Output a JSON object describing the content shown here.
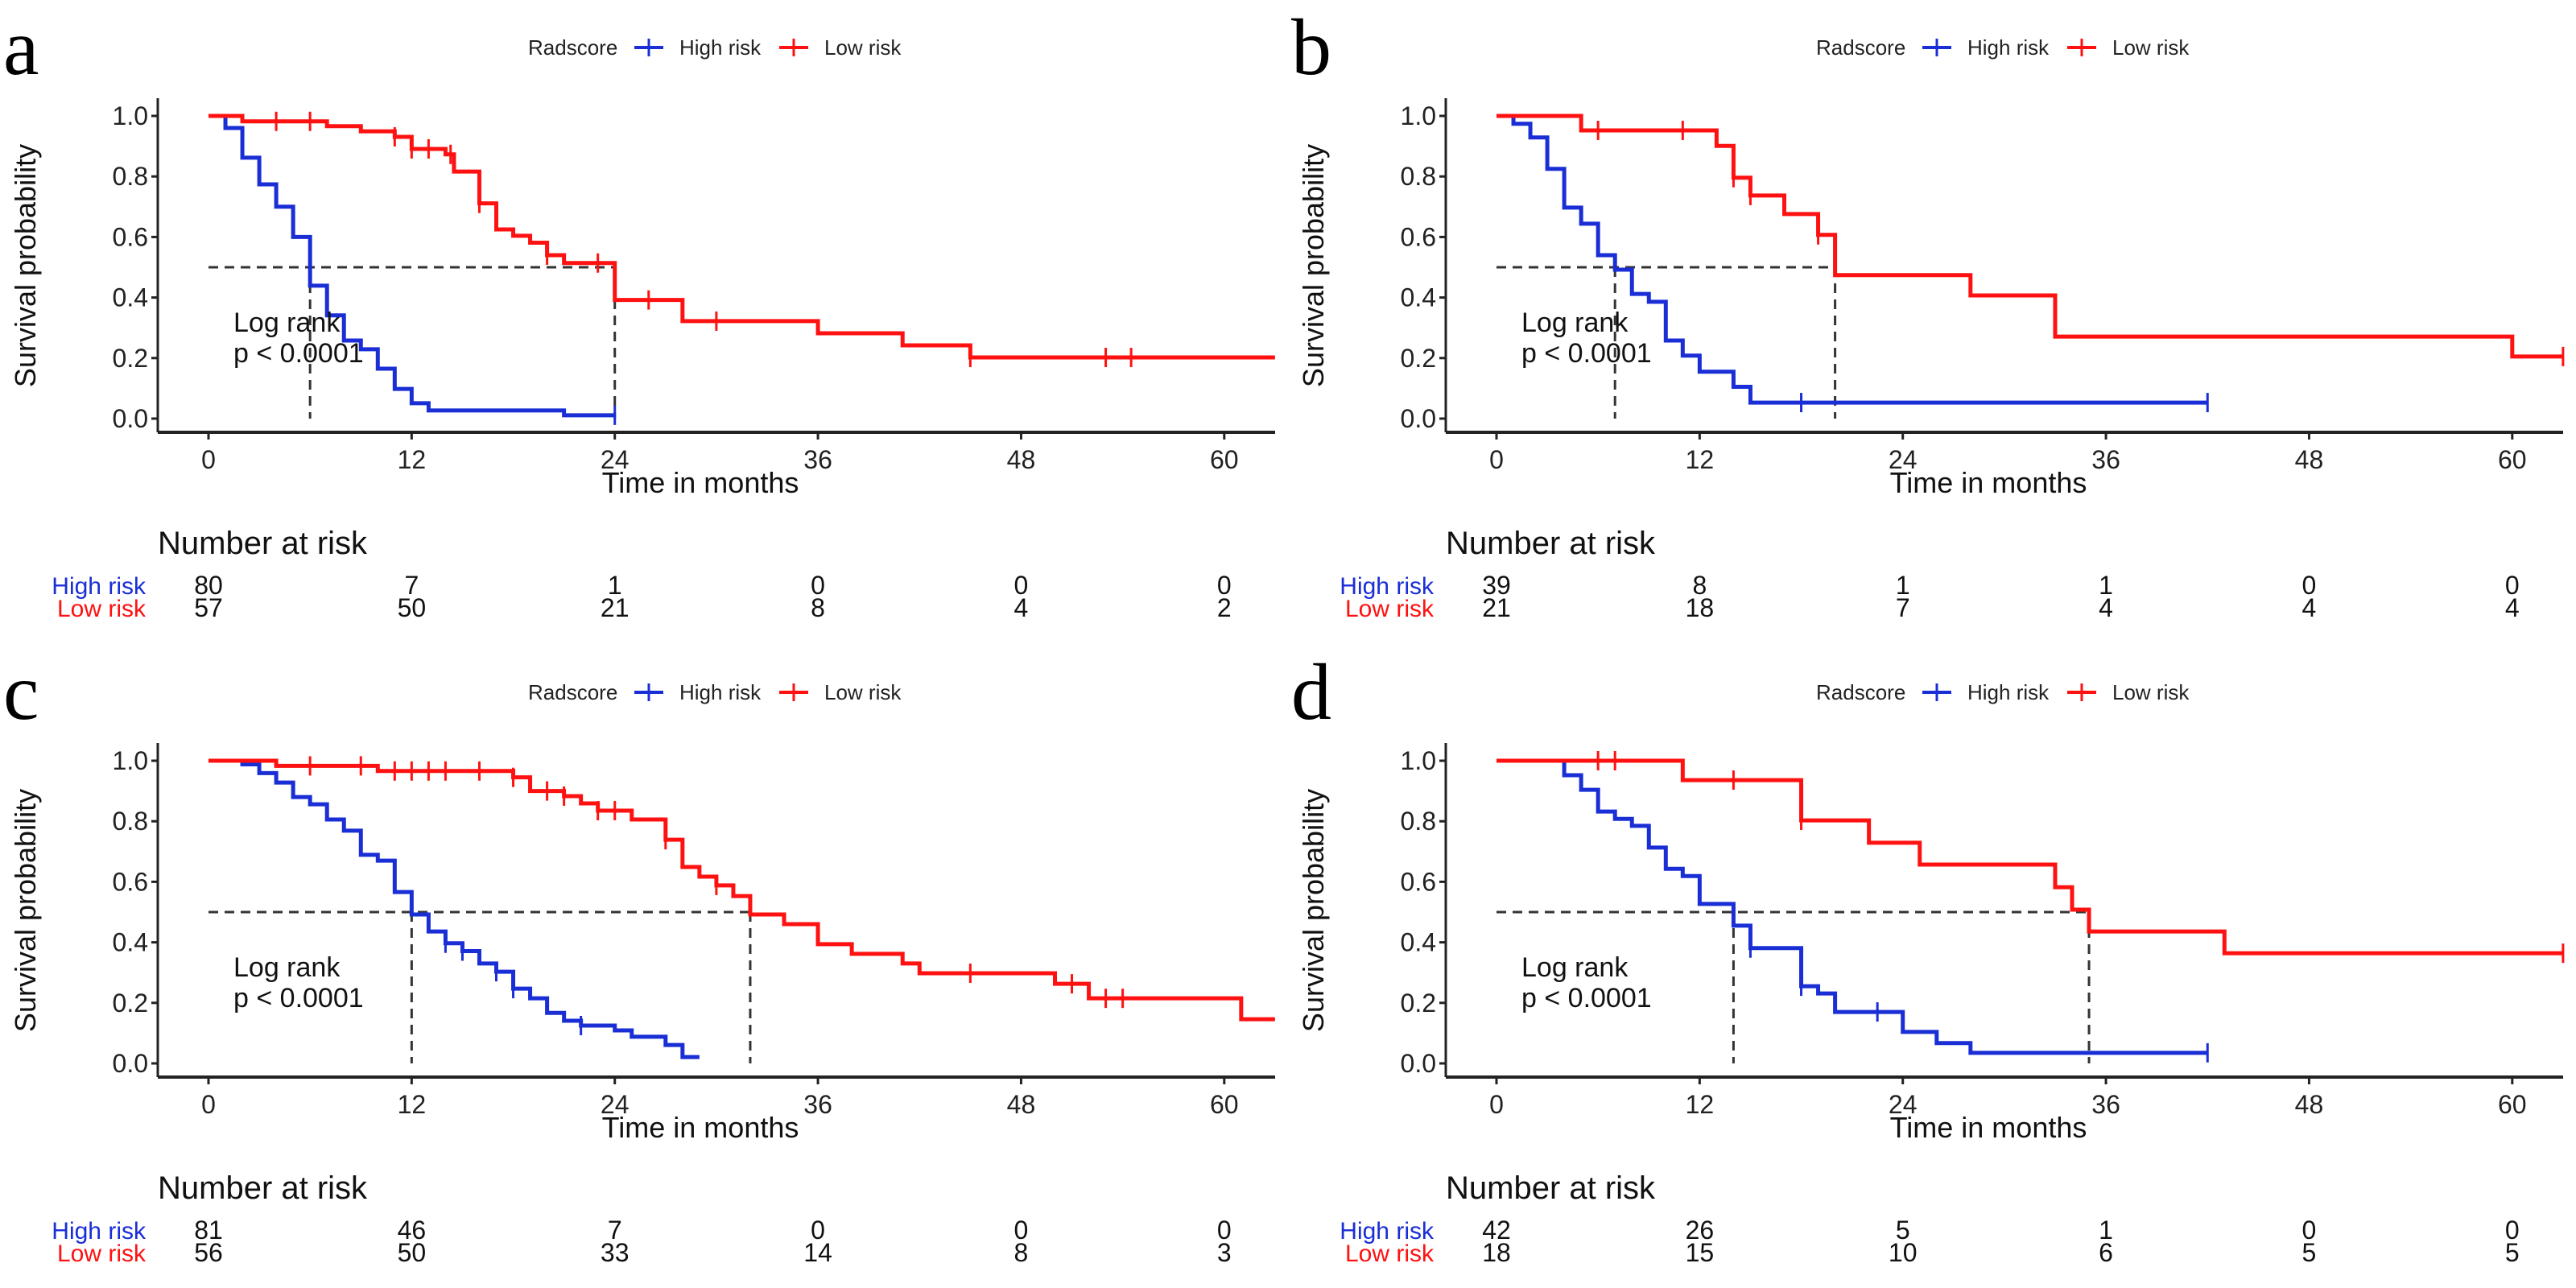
{
  "figure": {
    "legend_title": "Radscore",
    "colors": {
      "High risk": "#1a2ed6",
      "Low risk": "#ff1111",
      "axis": "#222222",
      "median_line": "#333333"
    }
  },
  "chart_data": [
    {
      "panel": "a",
      "type": "line",
      "subtype": "kaplan-meier",
      "title": "",
      "xlabel": "Time in months",
      "ylabel": "Survival probability",
      "xlim": [
        0,
        63
      ],
      "ylim": [
        0,
        1
      ],
      "xticks": [
        0,
        12,
        24,
        36,
        48,
        60
      ],
      "yticks": [
        "0.0",
        "0.2",
        "0.4",
        "0.6",
        "0.8",
        "1.0"
      ],
      "legend": {
        "title": "Radscore",
        "entries": [
          "High risk",
          "Low risk"
        ],
        "position": "top"
      },
      "annotation": [
        "Log rank",
        "p < 0.0001"
      ],
      "medians": {
        "High risk": 6,
        "Low risk": 24
      },
      "series": [
        {
          "name": "High risk",
          "steps": [
            [
              0,
              1.0
            ],
            [
              1,
              0.96
            ],
            [
              2,
              0.862
            ],
            [
              3,
              0.774
            ],
            [
              4,
              0.7
            ],
            [
              5,
              0.6
            ],
            [
              6,
              0.439
            ],
            [
              7,
              0.341
            ],
            [
              8,
              0.258
            ],
            [
              9,
              0.229
            ],
            [
              10,
              0.165
            ],
            [
              11,
              0.098
            ],
            [
              12,
              0.051
            ],
            [
              13,
              0.027
            ],
            [
              21,
              0.011
            ]
          ],
          "end": 24,
          "censors": [
            24
          ]
        },
        {
          "name": "Low risk",
          "steps": [
            [
              0,
              1.0
            ],
            [
              2,
              0.982
            ],
            [
              7,
              0.966
            ],
            [
              9,
              0.949
            ],
            [
              11,
              0.931
            ],
            [
              12,
              0.891
            ],
            [
              14,
              0.873
            ],
            [
              14.5,
              0.816
            ],
            [
              16,
              0.711
            ],
            [
              17,
              0.625
            ],
            [
              18,
              0.604
            ],
            [
              19,
              0.581
            ],
            [
              20,
              0.54
            ],
            [
              21,
              0.514
            ],
            [
              24,
              0.392
            ],
            [
              28,
              0.322
            ],
            [
              36,
              0.282
            ],
            [
              41,
              0.242
            ],
            [
              45,
              0.202
            ]
          ],
          "end": 63,
          "censors": [
            4,
            6,
            11,
            12,
            13,
            14.3,
            16,
            20,
            23,
            26,
            30,
            45,
            53,
            54.5
          ]
        }
      ],
      "risk_table": {
        "title": "Number at risk",
        "times": [
          0,
          12,
          24,
          36,
          48,
          60
        ],
        "rows": [
          {
            "label": "High risk",
            "values": [
              80,
              7,
              1,
              0,
              0,
              0
            ]
          },
          {
            "label": "Low risk",
            "values": [
              57,
              50,
              21,
              8,
              4,
              2
            ]
          }
        ]
      }
    },
    {
      "panel": "b",
      "type": "line",
      "subtype": "kaplan-meier",
      "title": "",
      "xlabel": "Time in months",
      "ylabel": "Survival probability",
      "xlim": [
        0,
        63
      ],
      "ylim": [
        0,
        1
      ],
      "xticks": [
        0,
        12,
        24,
        36,
        48,
        60
      ],
      "yticks": [
        "0.0",
        "0.2",
        "0.4",
        "0.6",
        "0.8",
        "1.0"
      ],
      "legend": {
        "title": "Radscore",
        "entries": [
          "High risk",
          "Low risk"
        ],
        "position": "top"
      },
      "annotation": [
        "Log rank",
        "p < 0.0001"
      ],
      "medians": {
        "High risk": 7,
        "Low risk": 20
      },
      "series": [
        {
          "name": "High risk",
          "steps": [
            [
              0,
              1.0
            ],
            [
              1,
              0.974
            ],
            [
              2,
              0.929
            ],
            [
              3,
              0.825
            ],
            [
              4,
              0.697
            ],
            [
              5,
              0.644
            ],
            [
              6,
              0.54
            ],
            [
              7,
              0.492
            ],
            [
              8,
              0.412
            ],
            [
              9,
              0.386
            ],
            [
              10,
              0.258
            ],
            [
              11,
              0.208
            ],
            [
              12,
              0.155
            ],
            [
              14,
              0.105
            ],
            [
              15,
              0.053
            ]
          ],
          "end": 42,
          "censors": [
            18,
            42
          ]
        },
        {
          "name": "Low risk",
          "steps": [
            [
              0,
              1.0
            ],
            [
              5,
              0.952
            ],
            [
              13,
              0.901
            ],
            [
              14,
              0.796
            ],
            [
              15,
              0.737
            ],
            [
              17,
              0.676
            ],
            [
              19,
              0.607
            ],
            [
              20,
              0.474
            ],
            [
              28,
              0.407
            ],
            [
              33,
              0.271
            ],
            [
              60,
              0.205
            ]
          ],
          "end": 63,
          "censors": [
            6,
            11,
            14,
            15,
            19,
            63
          ]
        }
      ],
      "risk_table": {
        "title": "Number at risk",
        "times": [
          0,
          12,
          24,
          36,
          48,
          60
        ],
        "rows": [
          {
            "label": "High risk",
            "values": [
              39,
              8,
              1,
              1,
              0,
              0
            ]
          },
          {
            "label": "Low risk",
            "values": [
              21,
              18,
              7,
              4,
              4,
              4
            ]
          }
        ]
      }
    },
    {
      "panel": "c",
      "type": "line",
      "subtype": "kaplan-meier",
      "title": "",
      "xlabel": "Time in months",
      "ylabel": "Survival probability",
      "xlim": [
        0,
        63
      ],
      "ylim": [
        0,
        1
      ],
      "xticks": [
        0,
        12,
        24,
        36,
        48,
        60
      ],
      "yticks": [
        "0.0",
        "0.2",
        "0.4",
        "0.6",
        "0.8",
        "1.0"
      ],
      "legend": {
        "title": "Radscore",
        "entries": [
          "High risk",
          "Low risk"
        ],
        "position": "top"
      },
      "annotation": [
        "Log rank",
        "p < 0.0001"
      ],
      "medians": {
        "High risk": 12,
        "Low risk": 32
      },
      "series": [
        {
          "name": "High risk",
          "steps": [
            [
              0,
              1.0
            ],
            [
              2,
              0.988
            ],
            [
              3,
              0.959
            ],
            [
              4,
              0.928
            ],
            [
              5,
              0.88
            ],
            [
              6,
              0.856
            ],
            [
              7,
              0.806
            ],
            [
              8,
              0.769
            ],
            [
              9,
              0.689
            ],
            [
              10,
              0.67
            ],
            [
              11,
              0.566
            ],
            [
              12,
              0.492
            ],
            [
              13,
              0.436
            ],
            [
              14,
              0.397
            ],
            [
              15,
              0.371
            ],
            [
              16,
              0.33
            ],
            [
              17,
              0.303
            ],
            [
              18,
              0.247
            ],
            [
              19,
              0.215
            ],
            [
              20,
              0.167
            ],
            [
              21,
              0.141
            ],
            [
              22,
              0.125
            ],
            [
              24,
              0.109
            ],
            [
              25,
              0.088
            ],
            [
              27,
              0.061
            ],
            [
              28,
              0.021
            ]
          ],
          "end": 29,
          "censors": [
            14,
            15,
            17,
            18,
            22
          ]
        },
        {
          "name": "Low risk",
          "steps": [
            [
              0,
              1.0
            ],
            [
              4,
              0.983
            ],
            [
              10,
              0.966
            ],
            [
              18,
              0.945
            ],
            [
              19,
              0.9
            ],
            [
              21,
              0.883
            ],
            [
              22,
              0.859
            ],
            [
              23,
              0.835
            ],
            [
              25,
              0.806
            ],
            [
              27,
              0.739
            ],
            [
              28,
              0.649
            ],
            [
              29,
              0.617
            ],
            [
              30,
              0.588
            ],
            [
              31,
              0.553
            ],
            [
              32,
              0.492
            ],
            [
              34,
              0.46
            ],
            [
              36,
              0.394
            ],
            [
              38,
              0.362
            ],
            [
              41,
              0.33
            ],
            [
              42,
              0.298
            ],
            [
              50,
              0.263
            ],
            [
              52,
              0.215
            ],
            [
              61,
              0.146
            ]
          ],
          "end": 63,
          "censors": [
            6,
            9,
            11,
            12,
            13,
            14,
            16,
            18,
            20,
            21,
            23,
            24,
            27,
            30,
            45,
            51,
            53,
            54
          ]
        }
      ],
      "risk_table": {
        "title": "Number at risk",
        "times": [
          0,
          12,
          24,
          36,
          48,
          60
        ],
        "rows": [
          {
            "label": "High risk",
            "values": [
              81,
              46,
              7,
              0,
              0,
              0
            ]
          },
          {
            "label": "Low risk",
            "values": [
              56,
              50,
              33,
              14,
              8,
              3
            ]
          }
        ]
      }
    },
    {
      "panel": "d",
      "type": "line",
      "subtype": "kaplan-meier",
      "title": "",
      "xlabel": "Time in months",
      "ylabel": "Survival probability",
      "xlim": [
        0,
        63
      ],
      "ylim": [
        0,
        1
      ],
      "xticks": [
        0,
        12,
        24,
        36,
        48,
        60
      ],
      "yticks": [
        "0.0",
        "0.2",
        "0.4",
        "0.6",
        "0.8",
        "1.0"
      ],
      "legend": {
        "title": "Radscore",
        "entries": [
          "High risk",
          "Low risk"
        ],
        "position": "top"
      },
      "annotation": [
        "Log rank",
        "p < 0.0001"
      ],
      "medians": {
        "High risk": 14,
        "Low risk": 35
      },
      "series": [
        {
          "name": "High risk",
          "steps": [
            [
              0,
              1.0
            ],
            [
              4,
              0.952
            ],
            [
              5,
              0.904
            ],
            [
              6,
              0.832
            ],
            [
              7,
              0.808
            ],
            [
              8,
              0.785
            ],
            [
              9,
              0.713
            ],
            [
              10,
              0.643
            ],
            [
              11,
              0.619
            ],
            [
              12,
              0.527
            ],
            [
              14,
              0.455
            ],
            [
              15,
              0.381
            ],
            [
              18,
              0.255
            ],
            [
              19,
              0.231
            ],
            [
              20,
              0.17
            ],
            [
              24,
              0.104
            ],
            [
              26,
              0.067
            ],
            [
              28,
              0.035
            ]
          ],
          "end": 42,
          "censors": [
            15,
            18,
            22.5,
            42
          ]
        },
        {
          "name": "Low risk",
          "steps": [
            [
              0,
              1.0
            ],
            [
              11,
              0.936
            ],
            [
              18,
              0.803
            ],
            [
              22,
              0.729
            ],
            [
              25,
              0.657
            ],
            [
              33,
              0.582
            ],
            [
              34,
              0.508
            ],
            [
              35,
              0.436
            ],
            [
              43,
              0.364
            ]
          ],
          "end": 63,
          "censors": [
            6,
            7,
            14,
            18,
            63
          ]
        }
      ],
      "risk_table": {
        "title": "Number at risk",
        "times": [
          0,
          12,
          24,
          36,
          48,
          60
        ],
        "rows": [
          {
            "label": "High risk",
            "values": [
              42,
              26,
              5,
              1,
              0,
              0
            ]
          },
          {
            "label": "Low risk",
            "values": [
              18,
              15,
              10,
              6,
              5,
              5
            ]
          }
        ]
      }
    }
  ]
}
